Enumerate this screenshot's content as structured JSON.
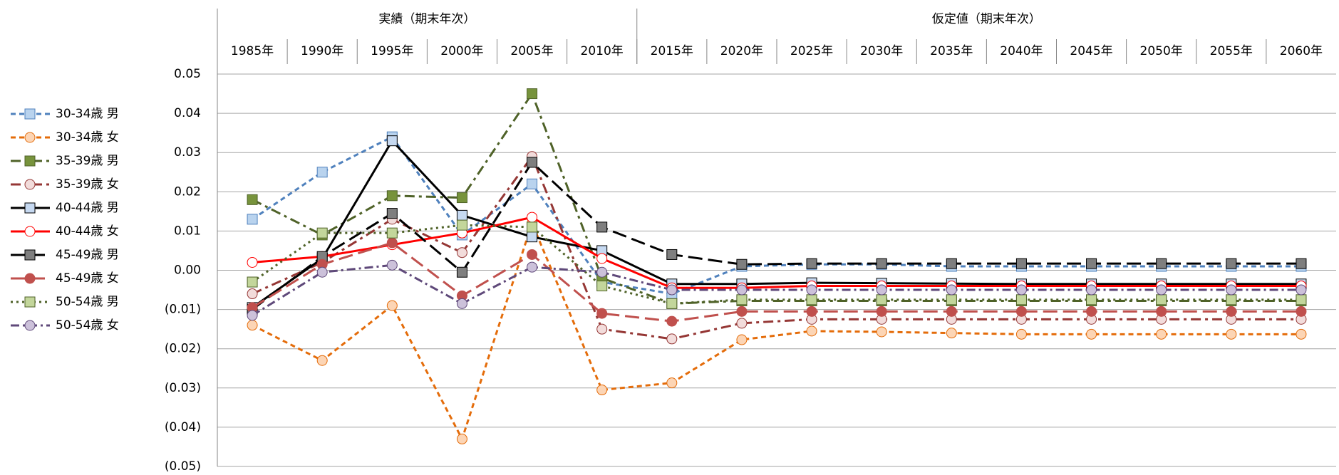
{
  "chart_data": {
    "type": "line",
    "groups": [
      {
        "label": "実績（期末年次）",
        "span": 6
      },
      {
        "label": "仮定値（期末年次）",
        "span": 10
      }
    ],
    "categories": [
      "1985年",
      "1990年",
      "1995年",
      "2000年",
      "2005年",
      "2010年",
      "2015年",
      "2020年",
      "2025年",
      "2030年",
      "2035年",
      "2040年",
      "2045年",
      "2050年",
      "2055年",
      "2060年"
    ],
    "ylim": [
      -0.05,
      0.05
    ],
    "yticks": [
      0.05,
      0.04,
      0.03,
      0.02,
      0.01,
      {
        "value": 0,
        "label": "0.00"
      },
      {
        "value": -0.01,
        "label": "(0.01)"
      },
      {
        "value": -0.02,
        "label": "(0.02)"
      },
      {
        "value": -0.03,
        "label": "(0.03)"
      },
      {
        "value": -0.04,
        "label": "(0.04)"
      },
      {
        "value": -0.05,
        "label": "(0.05)"
      }
    ],
    "negative_tick_color": "#ff0000",
    "grid": true,
    "legend": "left",
    "series": [
      {
        "name": "30-34歳 男",
        "color": "#4f81bd",
        "dash": "7,5",
        "marker": "square",
        "marker_fill": "#b9d3ee",
        "values": [
          0.013,
          0.025,
          0.034,
          0.009,
          0.022,
          -0.003,
          -0.006,
          0.001,
          0.0015,
          0.0015,
          0.001,
          0.001,
          0.001,
          0.001,
          0.001,
          0.001
        ]
      },
      {
        "name": "30-34歳 女",
        "color": "#e46c0a",
        "dash": "7,5",
        "marker": "circle",
        "marker_fill": "#fcd5b5",
        "values": [
          -0.014,
          -0.023,
          -0.009,
          -0.043,
          0.012,
          -0.0305,
          -0.0287,
          -0.0177,
          -0.0155,
          -0.0157,
          -0.016,
          -0.0163,
          -0.0163,
          -0.0163,
          -0.0163,
          -0.0163
        ]
      },
      {
        "name": "35-39歳 男",
        "color": "#4f6228",
        "dash": "14,6,4,6",
        "marker": "square",
        "marker_fill": "#77933c",
        "values": [
          0.018,
          0.009,
          0.019,
          0.0185,
          0.045,
          -0.002,
          -0.0085,
          -0.0078,
          -0.0078,
          -0.0078,
          -0.0078,
          -0.0078,
          -0.0078,
          -0.0078,
          -0.0078,
          -0.0078
        ]
      },
      {
        "name": "35-39歳 女",
        "color": "#953735",
        "dash": "14,6,4,6",
        "marker": "circle",
        "marker_fill": "#f2dcdb",
        "values": [
          -0.006,
          0.002,
          0.013,
          0.0045,
          0.029,
          -0.015,
          -0.0175,
          -0.0135,
          -0.0125,
          -0.0125,
          -0.0125,
          -0.0125,
          -0.0125,
          -0.0125,
          -0.0125,
          -0.0125
        ]
      },
      {
        "name": "40-44歳 男",
        "color": "#000000",
        "dash": "none",
        "marker": "square",
        "marker_fill": "#c6d9f1",
        "values": [
          -0.0095,
          0.003,
          0.033,
          0.014,
          0.0085,
          0.005,
          -0.0035,
          -0.0035,
          -0.0032,
          -0.0033,
          -0.0034,
          -0.0035,
          -0.0035,
          -0.0035,
          -0.0035,
          -0.0035
        ]
      },
      {
        "name": "40-44歳 女",
        "color": "#ff0000",
        "dash": "none",
        "marker": "circle",
        "marker_fill": "#ffffff",
        "values": [
          0.002,
          0.0035,
          0.0065,
          0.0095,
          0.0135,
          0.003,
          -0.0045,
          -0.0045,
          -0.004,
          -0.004,
          -0.004,
          -0.004,
          -0.004,
          -0.004,
          -0.004,
          -0.004
        ]
      },
      {
        "name": "45-49歳 男",
        "color": "#000000",
        "dash": "20,8",
        "marker": "square",
        "marker_fill": "#7f7f7f",
        "values": [
          -0.01,
          0.0035,
          0.0145,
          -0.0005,
          0.0275,
          0.011,
          0.004,
          0.0015,
          0.0017,
          0.0017,
          0.0017,
          0.0017,
          0.0017,
          0.0017,
          0.0017,
          0.0017
        ]
      },
      {
        "name": "45-49歳 女",
        "color": "#c0504d",
        "dash": "20,8",
        "marker": "circle",
        "marker_fill": "#c0504d",
        "values": [
          -0.0095,
          0.0015,
          0.007,
          -0.0065,
          0.004,
          -0.011,
          -0.013,
          -0.0105,
          -0.0105,
          -0.0105,
          -0.0105,
          -0.0105,
          -0.0105,
          -0.0105,
          -0.0105,
          -0.0105
        ]
      },
      {
        "name": "50-54歳 男",
        "color": "#4f6228",
        "dash": "3,5",
        "marker": "square",
        "marker_fill": "#c3d69b",
        "values": [
          -0.003,
          0.0095,
          0.0095,
          0.0115,
          0.011,
          -0.004,
          -0.0085,
          -0.0075,
          -0.0075,
          -0.0075,
          -0.0075,
          -0.0075,
          -0.0075,
          -0.0075,
          -0.0075,
          -0.0075
        ]
      },
      {
        "name": "50-54歳 女",
        "color": "#5f497a",
        "dash": "12,5,3,5",
        "marker": "circle",
        "marker_fill": "#ccc1da",
        "values": [
          -0.0115,
          -0.0005,
          0.0013,
          -0.0085,
          0.0008,
          -0.0005,
          -0.005,
          -0.005,
          -0.005,
          -0.005,
          -0.005,
          -0.005,
          -0.005,
          -0.005,
          -0.005,
          -0.005
        ]
      }
    ]
  }
}
